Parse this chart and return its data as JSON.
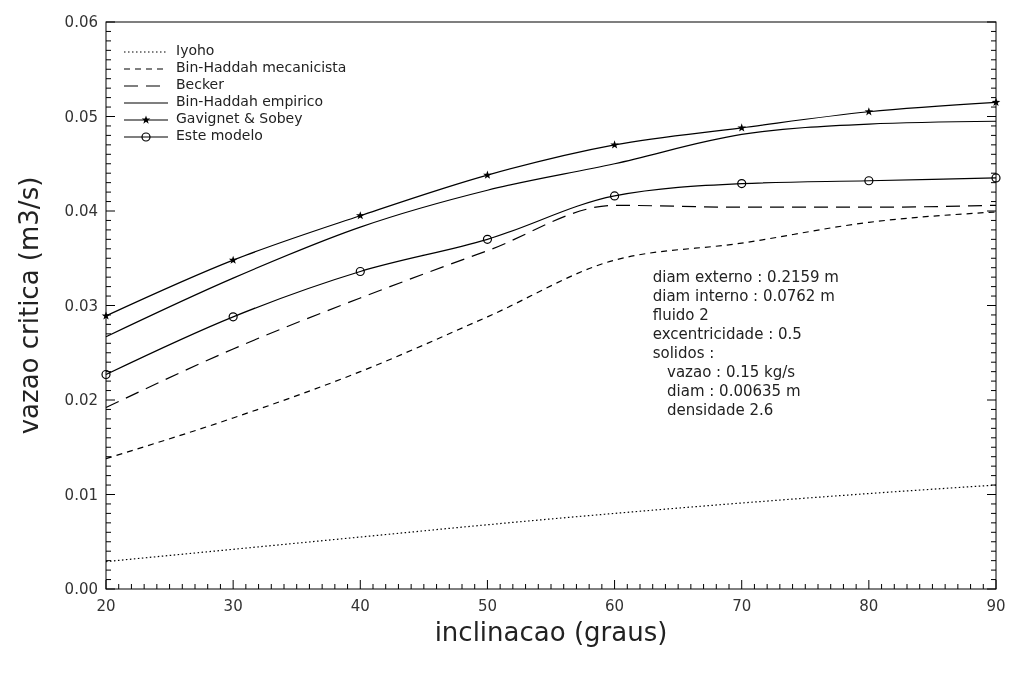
{
  "chart_data": {
    "type": "line",
    "xlabel": "inclinacao  (graus)",
    "ylabel": "vazao  critica  (m3/s)",
    "x": [
      20,
      30,
      40,
      50,
      60,
      70,
      80,
      90
    ],
    "xlim": [
      20,
      90
    ],
    "xticks": [
      20,
      30,
      40,
      50,
      60,
      70,
      80,
      90
    ],
    "ylim": [
      0,
      0.06
    ],
    "yticks": [
      {
        "value": 0,
        "label": "0.00"
      },
      {
        "value": 0.01,
        "label": "0.01"
      },
      {
        "value": 0.02,
        "label": "0.02"
      },
      {
        "value": 0.03,
        "label": "0.03"
      },
      {
        "value": 0.04,
        "label": "0.04"
      },
      {
        "value": 0.05,
        "label": "0.05"
      },
      {
        "value": 0.06,
        "label": "0.06"
      }
    ],
    "grid": false,
    "legend": "top left",
    "series": [
      {
        "name": "Iyoho",
        "color": "#000000",
        "line_style": "dotted",
        "marker": "none",
        "values": [
          0.0029,
          0.0042,
          0.0055,
          0.0068,
          0.008,
          0.0091,
          0.0101,
          0.011
        ]
      },
      {
        "name": "Bin-Haddah mecanicista",
        "color": "#000000",
        "line_style": "dashed",
        "marker": "none",
        "values": [
          0.0138,
          0.0181,
          0.023,
          0.0288,
          0.0348,
          0.0366,
          0.0388,
          0.0399
        ]
      },
      {
        "name": "Becker",
        "color": "#000000",
        "line_style": "longdash",
        "marker": "none",
        "values": [
          0.0192,
          0.0254,
          0.0308,
          0.0358,
          0.0406,
          0.0404,
          0.0404,
          0.0406
        ]
      },
      {
        "name": "Bin-Haddah empirico",
        "color": "#000000",
        "line_style": "solid",
        "marker": "none",
        "values": [
          0.0267,
          0.0329,
          0.0383,
          0.0422,
          0.045,
          0.0481,
          0.0492,
          0.0495
        ]
      },
      {
        "name": "Gavignet & Sobey",
        "color": "#000000",
        "line_style": "solid",
        "marker": "star",
        "values": [
          0.0289,
          0.0348,
          0.0395,
          0.0438,
          0.047,
          0.0488,
          0.0505,
          0.0515
        ]
      },
      {
        "name": "Este modelo",
        "color": "#000000",
        "line_style": "solid",
        "marker": "circle",
        "values": [
          0.0227,
          0.0288,
          0.0336,
          0.037,
          0.0416,
          0.0429,
          0.0432,
          0.0435
        ]
      }
    ],
    "annotations": [
      "diam externo : 0.2159 m",
      "diam interno : 0.0762 m",
      "fluido 2",
      "excentricidade : 0.5",
      "solidos :",
      "   vazao : 0.15 kg/s",
      "   diam : 0.00635 m",
      "   densidade 2.6"
    ]
  }
}
